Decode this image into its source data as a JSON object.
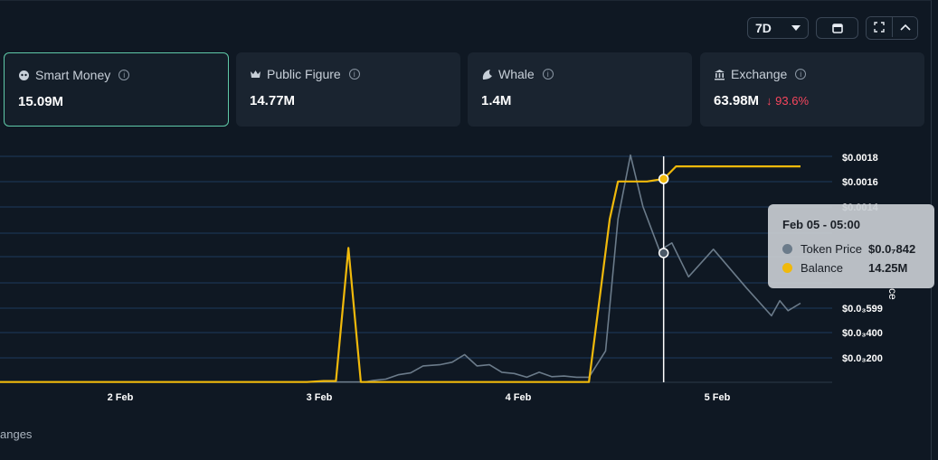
{
  "toolbar": {
    "range_label": "7D",
    "icons": [
      "chevron-down-icon",
      "calendar-icon",
      "fullscreen-icon",
      "chevron-up-icon"
    ]
  },
  "cards": [
    {
      "label": "Smart Money",
      "value": "15.09M",
      "icon": "brain-icon",
      "active": true
    },
    {
      "label": "Public Figure",
      "value": "14.77M",
      "icon": "crown-icon"
    },
    {
      "label": "Whale",
      "value": "1.4M",
      "icon": "whale-icon"
    },
    {
      "label": "Exchange",
      "value": "63.98M",
      "icon": "bank-icon",
      "change": "↓ 93.6%"
    }
  ],
  "colors": {
    "balance": "#f0b90b",
    "price": "#6b7b8a",
    "accent_border": "#5fc9a8",
    "negative": "#f6465d"
  },
  "chart_data": {
    "type": "line",
    "x_ticks": [
      "2 Feb",
      "3 Feb",
      "4 Feb",
      "5 Feb"
    ],
    "y_ticks": [
      "$0.0018",
      "$0.0016",
      "$0.0014",
      "$0.0₃599",
      "$0.0₃400",
      "$0.0₃200"
    ],
    "series": [
      {
        "name": "Token Price",
        "values": [
          2e-06,
          2e-06,
          2e-06,
          2e-06,
          2e-06,
          2e-06,
          2e-06,
          2e-06,
          2e-06,
          2e-06,
          2e-06,
          2e-06,
          2e-06,
          2e-06,
          2e-06,
          2e-06,
          2e-06,
          2e-06,
          2e-06,
          2e-06,
          2e-06,
          2e-06,
          2e-06,
          2e-06,
          2e-06,
          2e-06,
          2e-06,
          2e-06,
          2e-06,
          2e-06,
          2e-06,
          2e-06,
          2e-06,
          2e-06,
          2e-06,
          2e-06,
          2e-06,
          2e-06,
          2e-06,
          2e-06,
          2e-06,
          2e-06,
          2e-06,
          2e-06,
          2e-06,
          2e-06,
          2e-06,
          2e-06,
          2e-06,
          2e-06,
          2e-06,
          2e-06,
          2e-06,
          2e-06,
          2e-06,
          2e-06,
          2e-06,
          2e-06,
          2e-06,
          2e-06,
          2e-06,
          2e-06,
          2e-06,
          2e-06,
          2e-06,
          2e-06,
          2e-06,
          2e-06,
          2e-06,
          2e-06,
          2e-06,
          2e-06,
          2e-06,
          2e-06,
          2e-06,
          2e-06,
          2e-06,
          2e-06,
          2e-06,
          2e-06,
          2e-06,
          2e-06,
          2e-06,
          2e-06,
          2e-06,
          2e-06,
          2e-06,
          2e-06,
          2e-06,
          2e-06,
          2e-06,
          2e-06,
          2e-06,
          2e-06,
          2e-06,
          2e-06,
          2e-06,
          2e-06,
          2e-06,
          2e-06,
          2e-06,
          2e-06,
          2e-06,
          2e-06,
          2e-06,
          2e-06,
          2e-06,
          2e-06,
          2e-06,
          2e-06,
          2e-06,
          2e-06,
          2e-06,
          2e-06,
          2e-06,
          2e-06,
          2e-06,
          2e-06,
          2e-06,
          2e-06,
          2e-06,
          2e-06,
          2e-06,
          2e-06,
          2e-06,
          2e-06,
          2e-06,
          2e-06,
          2e-06,
          2e-06,
          2e-06,
          2e-06,
          2e-06,
          2e-06,
          2e-06,
          2e-06,
          2e-06,
          2e-06,
          2e-06,
          2e-06,
          2e-06,
          2e-06,
          2e-06,
          2e-06,
          2e-06,
          2e-06,
          2e-06,
          2e-06,
          2e-06,
          2e-06,
          2e-06,
          2e-06,
          2e-06,
          2e-06,
          2e-06,
          2e-06,
          2e-06,
          2e-06,
          2e-06,
          2e-06,
          2e-06,
          2e-06,
          2e-06,
          2e-06
        ],
        "points": [
          [
            0,
            2e-06
          ],
          [
            0.74,
            2e-06
          ],
          [
            0.88,
            2e-06
          ],
          [
            0.9,
            1.5e-05
          ],
          [
            0.93,
            2.5e-05
          ],
          [
            0.96,
            6e-05
          ],
          [
            0.99,
            7.5e-05
          ],
          [
            1.02,
            0.00013
          ],
          [
            1.06,
            0.00014
          ],
          [
            1.09,
            0.00016
          ],
          [
            1.12,
            0.00022
          ],
          [
            1.15,
            0.00013
          ],
          [
            1.18,
            0.00014
          ],
          [
            1.21,
            8e-05
          ],
          [
            1.24,
            7e-05
          ],
          [
            1.27,
            4e-05
          ],
          [
            1.3,
            8e-05
          ],
          [
            1.33,
            4.5e-05
          ],
          [
            1.36,
            5e-05
          ],
          [
            1.39,
            4e-05
          ],
          [
            1.42,
            4e-05
          ],
          [
            1.46,
            0.00025
          ],
          [
            1.49,
            0.0013
          ],
          [
            1.52,
            0.00181
          ],
          [
            1.55,
            0.0014
          ],
          [
            1.59,
            0.00105
          ],
          [
            1.62,
            0.00111
          ],
          [
            1.66,
            0.00084
          ],
          [
            1.72,
            0.00106
          ],
          [
            1.8,
            0.00075
          ],
          [
            1.86,
            0.00053
          ],
          [
            1.88,
            0.00065
          ],
          [
            1.9,
            0.00057
          ],
          [
            1.93,
            0.00063
          ]
        ]
      },
      {
        "name": "Balance",
        "points": [
          [
            0,
            2e-06
          ],
          [
            0.74,
            2e-06
          ],
          [
            0.78,
            1e-05
          ],
          [
            0.81,
            1e-05
          ],
          [
            0.84,
            0.00107
          ],
          [
            0.87,
            2e-06
          ],
          [
            1.42,
            2e-06
          ],
          [
            1.47,
            0.0013
          ],
          [
            1.49,
            0.0016
          ],
          [
            1.56,
            0.0016
          ],
          [
            1.6,
            0.00162
          ],
          [
            1.63,
            0.00172
          ],
          [
            1.93,
            0.00172
          ]
        ]
      }
    ],
    "ylim": [
      0,
      0.0018
    ],
    "tooltip": {
      "title": "Feb 05 - 05:00",
      "rows": [
        {
          "label": "Token Price",
          "value": "$0.0₇842"
        },
        {
          "label": "Balance",
          "value": "14.25M"
        }
      ]
    }
  },
  "footer": {
    "text": "anges"
  },
  "side_label": "ce"
}
